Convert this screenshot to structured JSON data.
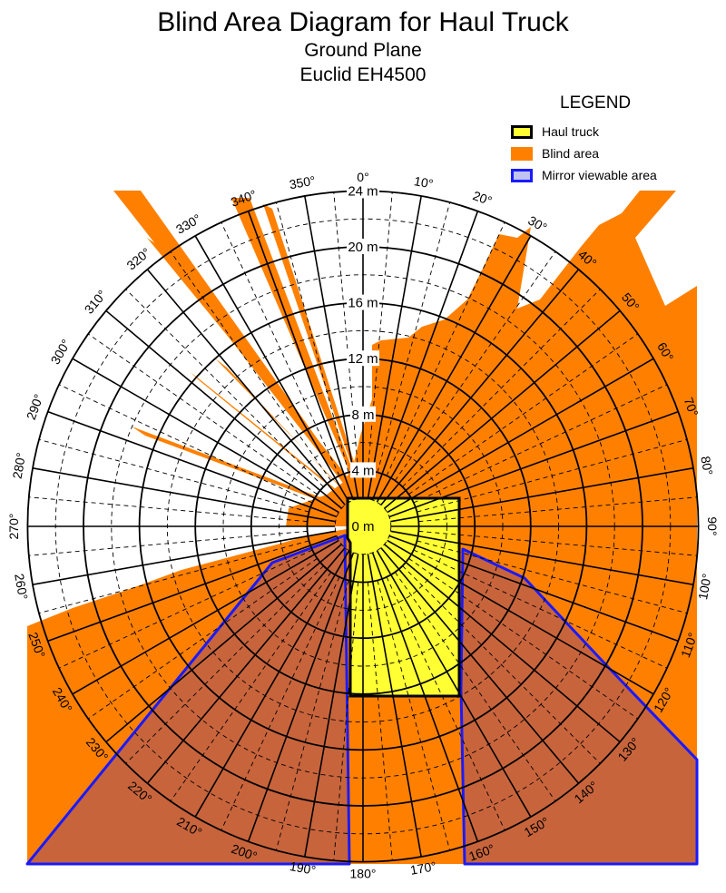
{
  "title": "Blind Area Diagram for Haul Truck",
  "subtitle": "Ground Plane",
  "model": "Euclid EH4500",
  "legend": {
    "title": "LEGEND",
    "items": [
      {
        "label": "Haul truck",
        "fill": "#ffff33",
        "border": "#000000"
      },
      {
        "label": "Blind area",
        "fill": "#ff8000",
        "border": "#ff8000"
      },
      {
        "label": "Mirror viewable area",
        "fill": "#c0c4f0",
        "border": "#1a1aff"
      }
    ]
  },
  "radial_labels": [
    "0 m",
    "4 m",
    "8 m",
    "12 m",
    "16 m",
    "20 m",
    "24 m"
  ],
  "angle_labels": [
    "0°",
    "10°",
    "20°",
    "30°",
    "40°",
    "50°",
    "60°",
    "70°",
    "80°",
    "90°",
    "100°",
    "110°",
    "120°",
    "130°",
    "140°",
    "150°",
    "160°",
    "170°",
    "180°",
    "190°",
    "200°",
    "210°",
    "220°",
    "230°",
    "240°",
    "250°",
    "260°",
    "270°",
    "280°",
    "290°",
    "300°",
    "310°",
    "320°",
    "330°",
    "340°",
    "350°"
  ],
  "colors": {
    "blind_area": "#ff8000",
    "mirror_area": "#c8643c",
    "mirror_border": "#1a1aff",
    "truck": "#ffff33",
    "grid": "#000000"
  }
}
